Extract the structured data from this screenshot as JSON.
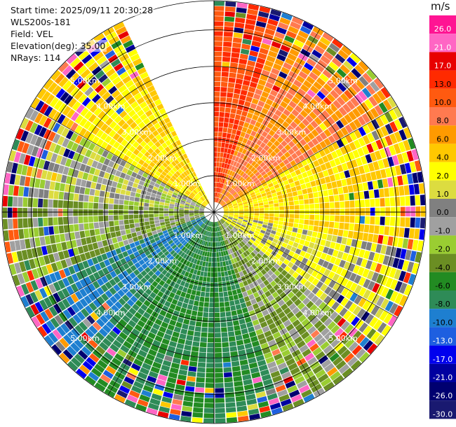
{
  "header": {
    "start_time": "Start time: 2025/09/11 20:30:28",
    "instrument": "WLS200s-181",
    "field": "Field: VEL",
    "elevation": "Elevation(deg): 35.00",
    "nrays": "NRays: 114"
  },
  "chart_data": {
    "type": "ppi-polar-velocity",
    "field": "VEL",
    "units": "m/s",
    "elevation_deg": 35.0,
    "n_rays": 114,
    "range_rings_km": [
      1.0,
      2.0,
      3.0,
      4.0,
      5.0
    ],
    "range_ring_labels": [
      "1.00km",
      "2.00km",
      "3.00km",
      "4.00km",
      "5.00km"
    ],
    "max_range_km": 5.8,
    "missing_sector_deg": [
      335,
      360
    ],
    "colorbar": {
      "unit_label": "m/s",
      "tick_labels": [
        "26.0",
        "21.0",
        "17.0",
        "13.0",
        "10.0",
        "8.0",
        "6.0",
        "4.0",
        "2.0",
        "1.0",
        "0.0",
        "-1.0",
        "-2.0",
        "-4.0",
        "-6.0",
        "-8.0",
        "-10.0",
        "-13.0",
        "-17.0",
        "-21.0",
        "-26.0",
        "-30.0"
      ],
      "colors": [
        "#ff1493",
        "#ff66c4",
        "#e80000",
        "#ff2a00",
        "#ff5a10",
        "#ff7a50",
        "#ff9a00",
        "#ffc800",
        "#ffff00",
        "#dcdc40",
        "#808080",
        "#a0a0a0",
        "#9acd32",
        "#6b8e23",
        "#228b22",
        "#2e8b57",
        "#1e7fd0",
        "#1e5fe0",
        "#0000ee",
        "#0000a0",
        "#000070",
        "#191970"
      ]
    },
    "sectors": [
      {
        "from_deg": 0,
        "to_deg": 20,
        "velocity": 13.0
      },
      {
        "from_deg": 20,
        "to_deg": 60,
        "velocity": 8.0
      },
      {
        "from_deg": 60,
        "to_deg": 100,
        "velocity": 4.0
      },
      {
        "from_deg": 100,
        "to_deg": 130,
        "velocity": 2.0
      },
      {
        "from_deg": 130,
        "to_deg": 160,
        "velocity": -2.0
      },
      {
        "from_deg": 160,
        "to_deg": 220,
        "velocity": -6.0
      },
      {
        "from_deg": 220,
        "to_deg": 250,
        "velocity": -8.0
      },
      {
        "from_deg": 250,
        "to_deg": 275,
        "velocity": -2.0
      },
      {
        "from_deg": 275,
        "to_deg": 300,
        "velocity": 0.0
      },
      {
        "from_deg": 300,
        "to_deg": 335,
        "velocity": 4.0
      }
    ]
  }
}
